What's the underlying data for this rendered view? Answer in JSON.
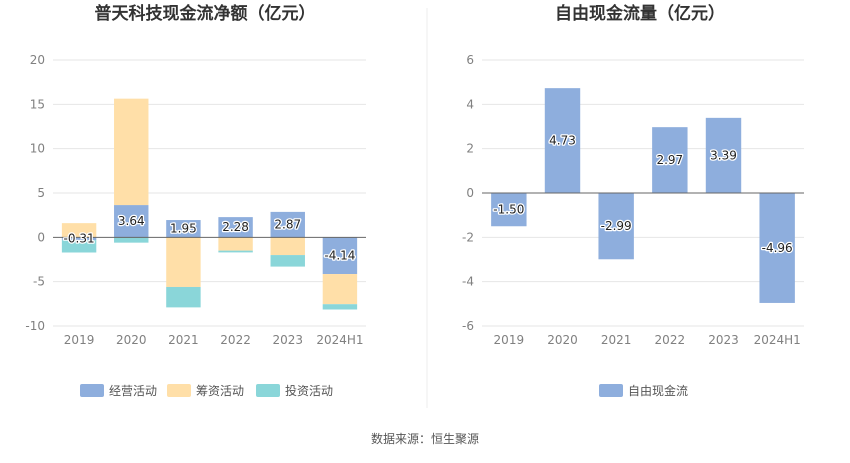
{
  "source_note": "数据来源：恒生聚源",
  "colors": {
    "operating": "#8eaedd",
    "financing": "#ffdfa8",
    "investing": "#8ad6d9",
    "fcf": "#8eaedd",
    "grid": "#e6e6e6",
    "axis_text": "#808080",
    "title_text": "#333333",
    "divider": "#eeeeee"
  },
  "chart_data": [
    {
      "type": "bar",
      "stacked": true,
      "title": "普天科技现金流净额（亿元）",
      "categories": [
        "2019",
        "2020",
        "2021",
        "2022",
        "2023",
        "2024H1"
      ],
      "ylim": [
        -10,
        20
      ],
      "yticks": [
        20,
        15,
        10,
        5,
        0,
        -5,
        -10
      ],
      "grid": true,
      "legend_position": "bottom",
      "series": [
        {
          "name": "经营活动",
          "values": [
            -0.31,
            3.64,
            1.95,
            2.28,
            2.87,
            -4.14
          ],
          "labels": [
            "-0.31",
            "3.64",
            "1.95",
            "2.28",
            "2.87",
            "-4.14"
          ]
        },
        {
          "name": "筹资活动",
          "values": [
            1.6,
            12.0,
            -5.6,
            -1.5,
            -2.0,
            -3.4
          ],
          "labels": []
        },
        {
          "name": "投资活动",
          "values": [
            -1.4,
            -0.6,
            -2.3,
            -0.2,
            -1.3,
            -0.6
          ],
          "labels": []
        }
      ]
    },
    {
      "type": "bar",
      "title": "自由现金流量（亿元）",
      "categories": [
        "2019",
        "2020",
        "2021",
        "2022",
        "2023",
        "2024H1"
      ],
      "ylim": [
        -6,
        6
      ],
      "yticks": [
        6,
        4,
        2,
        0,
        -2,
        -4,
        -6
      ],
      "grid": true,
      "legend_position": "bottom",
      "series": [
        {
          "name": "自由现金流",
          "values": [
            -1.5,
            4.73,
            -2.99,
            2.97,
            3.39,
            -4.96
          ],
          "labels": [
            "-1.50",
            "4.73",
            "-2.99",
            "2.97",
            "3.39",
            "-4.96"
          ]
        }
      ]
    }
  ]
}
